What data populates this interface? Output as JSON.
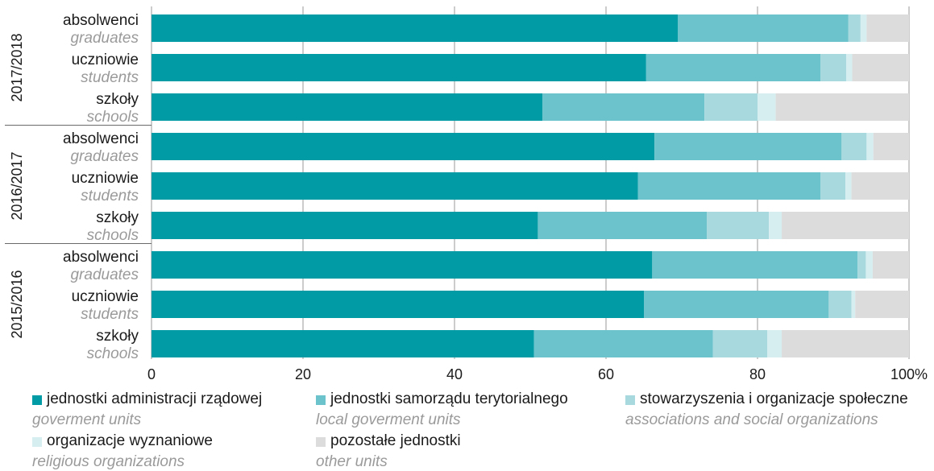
{
  "chart_data": {
    "type": "bar",
    "orientation": "horizontal",
    "stacked": true,
    "xlim": [
      0,
      100
    ],
    "x_ticks": [
      "0",
      "20",
      "40",
      "60",
      "80",
      "100%"
    ],
    "groups": [
      {
        "year": "2017/2018",
        "rows": [
          {
            "label_pl": "absolwenci",
            "label_en": "graduates",
            "values": [
              69.5,
              22.5,
              1.6,
              0.8,
              5.6
            ]
          },
          {
            "label_pl": "uczniowie",
            "label_en": "students",
            "values": [
              65.3,
              23.0,
              3.4,
              0.8,
              7.5
            ]
          },
          {
            "label_pl": "szkoły",
            "label_en": "schools",
            "values": [
              51.6,
              21.4,
              7.0,
              2.4,
              17.6
            ]
          }
        ]
      },
      {
        "year": "2016/2017",
        "rows": [
          {
            "label_pl": "absolwenci",
            "label_en": "graduates",
            "values": [
              66.4,
              24.7,
              3.3,
              0.9,
              4.7
            ]
          },
          {
            "label_pl": "uczniowie",
            "label_en": "students",
            "values": [
              64.2,
              24.1,
              3.3,
              0.8,
              7.6
            ]
          },
          {
            "label_pl": "szkoły",
            "label_en": "schools",
            "values": [
              51.0,
              22.3,
              8.2,
              1.7,
              16.8
            ]
          }
        ]
      },
      {
        "year": "2015/2016",
        "rows": [
          {
            "label_pl": "absolwenci",
            "label_en": "graduates",
            "values": [
              66.1,
              27.1,
              1.1,
              0.9,
              4.8
            ]
          },
          {
            "label_pl": "uczniowie",
            "label_en": "students",
            "values": [
              65.0,
              24.4,
              3.0,
              0.5,
              7.1
            ]
          },
          {
            "label_pl": "szkoły",
            "label_en": "schools",
            "values": [
              50.5,
              23.6,
              7.2,
              1.9,
              16.8
            ]
          }
        ]
      }
    ],
    "series": [
      {
        "name_pl": "jednostki administracji rządowej",
        "name_en": "goverment units",
        "color": "#009ba5"
      },
      {
        "name_pl": "jednostki samorządu terytorialnego",
        "name_en": "local goverment units",
        "color": "#6cc3cb"
      },
      {
        "name_pl": "stowarzyszenia i organizacje społeczne",
        "name_en": "associations and social organizations",
        "color": "#a8d9de"
      },
      {
        "name_pl": "organizacje wyznaniowe",
        "name_en": "religious organizations",
        "color": "#d7eef0"
      },
      {
        "name_pl": "pozostałe jednostki",
        "name_en": "other units",
        "color": "#dcdcdc"
      }
    ],
    "grid": true,
    "legend_position": "bottom"
  }
}
